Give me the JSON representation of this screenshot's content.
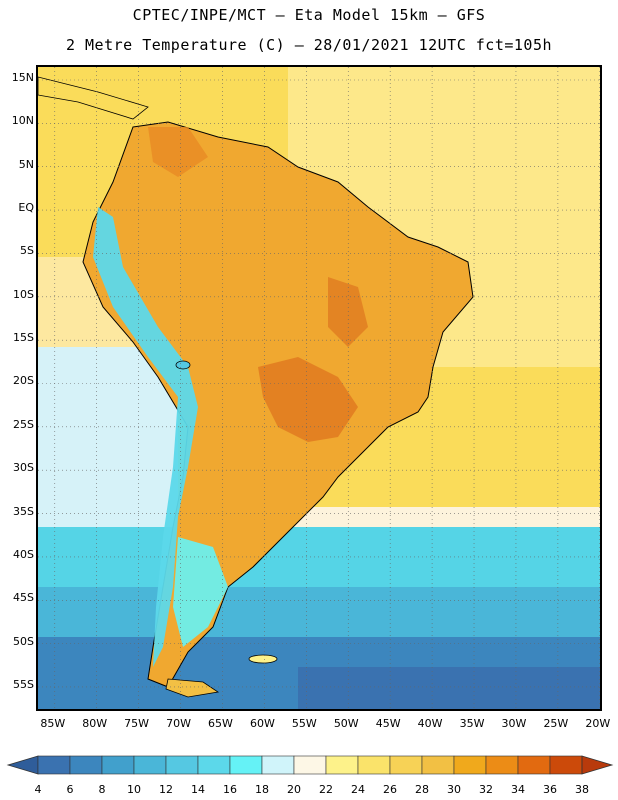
{
  "header": {
    "line1": "CPTEC/INPE/MCT –  Eta Model 15km – GFS",
    "line2": "2 Metre Temperature (C) – 28/01/2021 12UTC fct=105h"
  },
  "map": {
    "lat_labels": [
      "15N",
      "10N",
      "5N",
      "EQ",
      "5S",
      "10S",
      "15S",
      "20S",
      "25S",
      "30S",
      "35S",
      "40S",
      "45S",
      "50S",
      "55S"
    ],
    "lon_labels": [
      "85W",
      "80W",
      "75W",
      "70W",
      "65W",
      "60W",
      "55W",
      "50W",
      "45W",
      "40W",
      "35W",
      "30W",
      "25W",
      "20W"
    ],
    "lat_values": [
      15,
      10,
      5,
      0,
      -5,
      -10,
      -15,
      -20,
      -25,
      -30,
      -35,
      -40,
      -45,
      -50,
      -55
    ],
    "lon_values": [
      -85,
      -80,
      -75,
      -70,
      -65,
      -60,
      -55,
      -50,
      -45,
      -40,
      -35,
      -30,
      -25,
      -20
    ]
  },
  "legend": {
    "title": "2 Metre Temperature (C)",
    "ticks": [
      "4",
      "6",
      "8",
      "10",
      "12",
      "14",
      "16",
      "18",
      "20",
      "22",
      "24",
      "26",
      "28",
      "30",
      "32",
      "34",
      "36",
      "38"
    ],
    "colors": [
      "#3a72b0",
      "#3c86be",
      "#41a0cc",
      "#4ab6d8",
      "#55c8e2",
      "#5cd8ea",
      "#65f2f6",
      "#d0f4fa",
      "#fdf7e6",
      "#fdf28a",
      "#fae36a",
      "#f7d256",
      "#f2c044",
      "#f0a91c",
      "#ec8c16",
      "#e26a10",
      "#cc4a0a"
    ],
    "arrow_low_color": "#2f5d9a",
    "arrow_high_color": "#b83a0c"
  },
  "colors": {
    "ocean_north": "#fadc5a",
    "land_warm": "#f0a830",
    "land_hot": "#e07a20",
    "andes": "#5cd8ea"
  }
}
